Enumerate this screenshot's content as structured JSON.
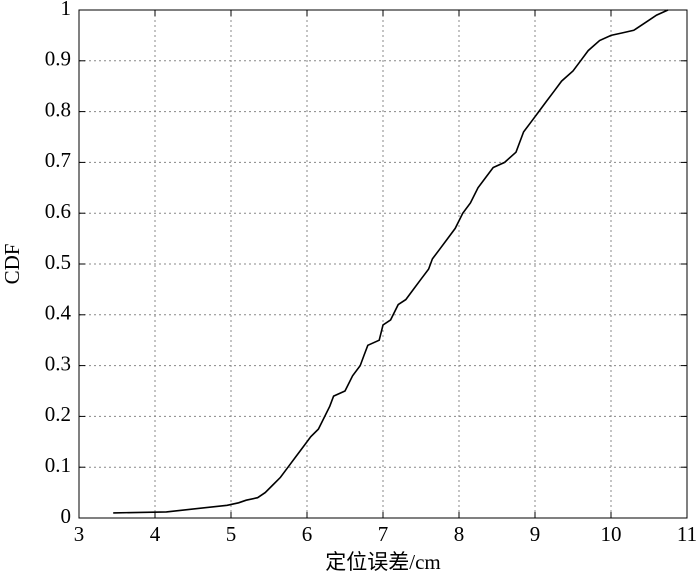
{
  "chart_data": {
    "type": "line",
    "xlabel": "定位误差/cm",
    "ylabel": "CDF",
    "xlim": [
      3,
      11
    ],
    "xticks": [
      3,
      4,
      5,
      6,
      7,
      8,
      9,
      10,
      11
    ],
    "ylim": [
      0,
      1
    ],
    "yticks": [
      0,
      0.1,
      0.2,
      0.3,
      0.4,
      0.5,
      0.6,
      0.7,
      0.8,
      0.9,
      1
    ],
    "grid": true,
    "series": [
      {
        "color": "#000000",
        "x": [
          3.45,
          4.15,
          4.95,
          5.1,
          5.2,
          5.35,
          5.45,
          5.55,
          5.65,
          5.75,
          5.85,
          5.95,
          6.05,
          6.15,
          6.2,
          6.3,
          6.35,
          6.5,
          6.6,
          6.7,
          6.75,
          6.8,
          6.95,
          7.0,
          7.1,
          7.2,
          7.3,
          7.4,
          7.5,
          7.6,
          7.65,
          7.75,
          7.85,
          7.95,
          8.05,
          8.15,
          8.25,
          8.35,
          8.45,
          8.6,
          8.75,
          8.85,
          8.95,
          9.05,
          9.15,
          9.25,
          9.35,
          9.5,
          9.6,
          9.7,
          9.85,
          10.0,
          10.15,
          10.3,
          10.5,
          10.6,
          10.75
        ],
        "values": [
          0.01,
          0.012,
          0.025,
          0.03,
          0.035,
          0.04,
          0.05,
          0.065,
          0.08,
          0.1,
          0.12,
          0.14,
          0.16,
          0.175,
          0.19,
          0.22,
          0.24,
          0.25,
          0.28,
          0.3,
          0.32,
          0.34,
          0.35,
          0.38,
          0.39,
          0.42,
          0.43,
          0.45,
          0.47,
          0.49,
          0.51,
          0.53,
          0.55,
          0.57,
          0.6,
          0.62,
          0.65,
          0.67,
          0.69,
          0.7,
          0.72,
          0.76,
          0.78,
          0.8,
          0.82,
          0.84,
          0.86,
          0.88,
          0.9,
          0.92,
          0.94,
          0.95,
          0.955,
          0.96,
          0.98,
          0.99,
          1.0
        ]
      }
    ]
  }
}
